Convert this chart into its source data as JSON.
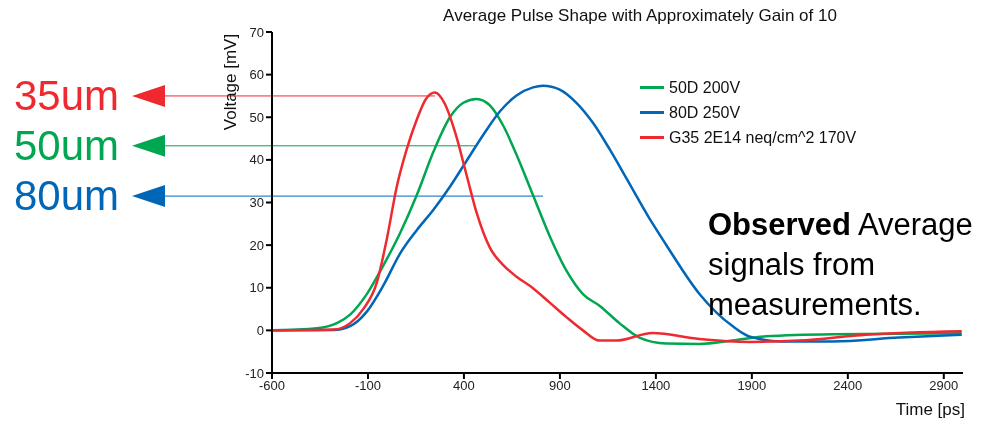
{
  "chart_data": {
    "type": "line",
    "title": "Average Pulse Shape with Approximately Gain of 10",
    "xlabel": "Time [ps]",
    "ylabel": "Voltage [mV]",
    "series": [
      {
        "name": "50D 200V",
        "color": "#00a650",
        "x": [
          -600,
          -366,
          -262,
          -193,
          -106,
          -19,
          67,
          154,
          241,
          327,
          397,
          466,
          535,
          605,
          674,
          760,
          847,
          934,
          1020,
          1106,
          1210,
          1314,
          1453,
          1626,
          1799,
          1973,
          2320,
          2993
        ],
        "values": [
          0,
          0.5,
          1.7,
          3.7,
          8.5,
          15.3,
          22.8,
          31.7,
          41.9,
          50.0,
          53.4,
          54.3,
          52.8,
          48.0,
          41.2,
          31.7,
          22.1,
          14.0,
          8.5,
          5.8,
          1.7,
          -1.7,
          -3.1,
          -3.2,
          -2.4,
          -1.4,
          -0.9,
          -0.7
        ]
      },
      {
        "name": "80D 250V",
        "color": "#0066b8",
        "x": [
          -600,
          -279,
          -193,
          -106,
          -19,
          67,
          154,
          241,
          327,
          414,
          501,
          588,
          674,
          760,
          812,
          899,
          986,
          1072,
          1159,
          1246,
          1367,
          1453,
          1626,
          1799,
          1886,
          2059,
          2319,
          2667,
          2993
        ],
        "values": [
          0,
          0.1,
          1.0,
          4.4,
          10.6,
          18.0,
          23.5,
          28.3,
          33.7,
          39.8,
          45.9,
          51.4,
          55.1,
          57.0,
          57.4,
          56.5,
          53.4,
          48.7,
          42.5,
          35.7,
          26.2,
          20.1,
          8.6,
          1.0,
          -1.4,
          -2.6,
          -2.6,
          -1.7,
          -1.0
        ]
      },
      {
        "name": "G35 2E14 neq/cm^2 170V",
        "color": "#ee2a30",
        "x": [
          -600,
          -279,
          -193,
          -123,
          -54,
          -2,
          50,
          102,
          154,
          202,
          249,
          301,
          353,
          414,
          466,
          535,
          605,
          674,
          760,
          847,
          934,
          1020,
          1106,
          1194,
          1382,
          1626,
          1886,
          2146,
          2494,
          2993
        ],
        "values": [
          0,
          0.2,
          1.7,
          5.1,
          11.2,
          21.4,
          33.7,
          42.5,
          49.4,
          54.3,
          55.8,
          53.1,
          46.6,
          36.4,
          27.6,
          19.4,
          15.3,
          12.6,
          9.9,
          6.5,
          3.1,
          0,
          -2.4,
          -2.4,
          -0.6,
          -2.0,
          -2.7,
          -2.4,
          -1.0,
          -0.2
        ]
      }
    ],
    "xlim": [
      -600,
      3000
    ],
    "xticks": [
      -600,
      -100,
      400,
      900,
      1400,
      1900,
      2400,
      2900
    ],
    "ylim": [
      -10,
      70
    ],
    "yticks": [
      -10,
      0,
      10,
      20,
      30,
      40,
      50,
      60,
      70
    ],
    "legend": "top right",
    "marker": "none",
    "line_style": "solid",
    "ref_lines": [
      {
        "axis": "y",
        "value": 55,
        "label": "35um",
        "color": "#ee2a30"
      },
      {
        "axis": "y",
        "value": 43.3,
        "label": "50um",
        "color": "#00a650"
      },
      {
        "axis": "y",
        "value": 31.5,
        "label": "80um",
        "color": "#0066b8"
      }
    ],
    "annotations": [
      "Observed Average signals from measurements."
    ]
  }
}
